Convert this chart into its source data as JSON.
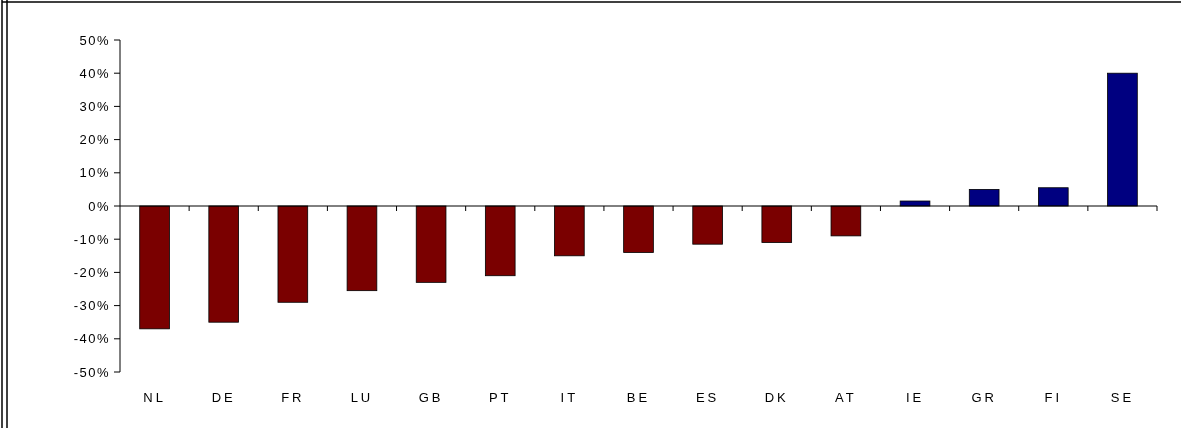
{
  "chart_data": {
    "type": "bar",
    "categories": [
      "NL",
      "DE",
      "FR",
      "LU",
      "GB",
      "PT",
      "IT",
      "BE",
      "ES",
      "DK",
      "AT",
      "IE",
      "GR",
      "FI",
      "SE"
    ],
    "values": [
      -37,
      -35,
      -29,
      -25.5,
      -23,
      -21,
      -15,
      -14,
      -11.5,
      -11,
      -9,
      1.5,
      5,
      5.5,
      40
    ],
    "colors": [
      "#7a0000",
      "#7a0000",
      "#7a0000",
      "#7a0000",
      "#7a0000",
      "#7a0000",
      "#7a0000",
      "#7a0000",
      "#7a0000",
      "#7a0000",
      "#7a0000",
      "#000080",
      "#000080",
      "#000080",
      "#000080"
    ],
    "ylim": [
      -50,
      50
    ],
    "yticks": [
      {
        "value": -50,
        "label": "-50%"
      },
      {
        "value": -40,
        "label": "-40%"
      },
      {
        "value": -30,
        "label": "-30%"
      },
      {
        "value": -20,
        "label": "-20%"
      },
      {
        "value": -10,
        "label": "-10%"
      },
      {
        "value": 0,
        "label": "0%"
      },
      {
        "value": 10,
        "label": "10%"
      },
      {
        "value": 20,
        "label": "20%"
      },
      {
        "value": 30,
        "label": "30%"
      },
      {
        "value": 40,
        "label": "40%"
      },
      {
        "value": 50,
        "label": "50%"
      }
    ]
  }
}
